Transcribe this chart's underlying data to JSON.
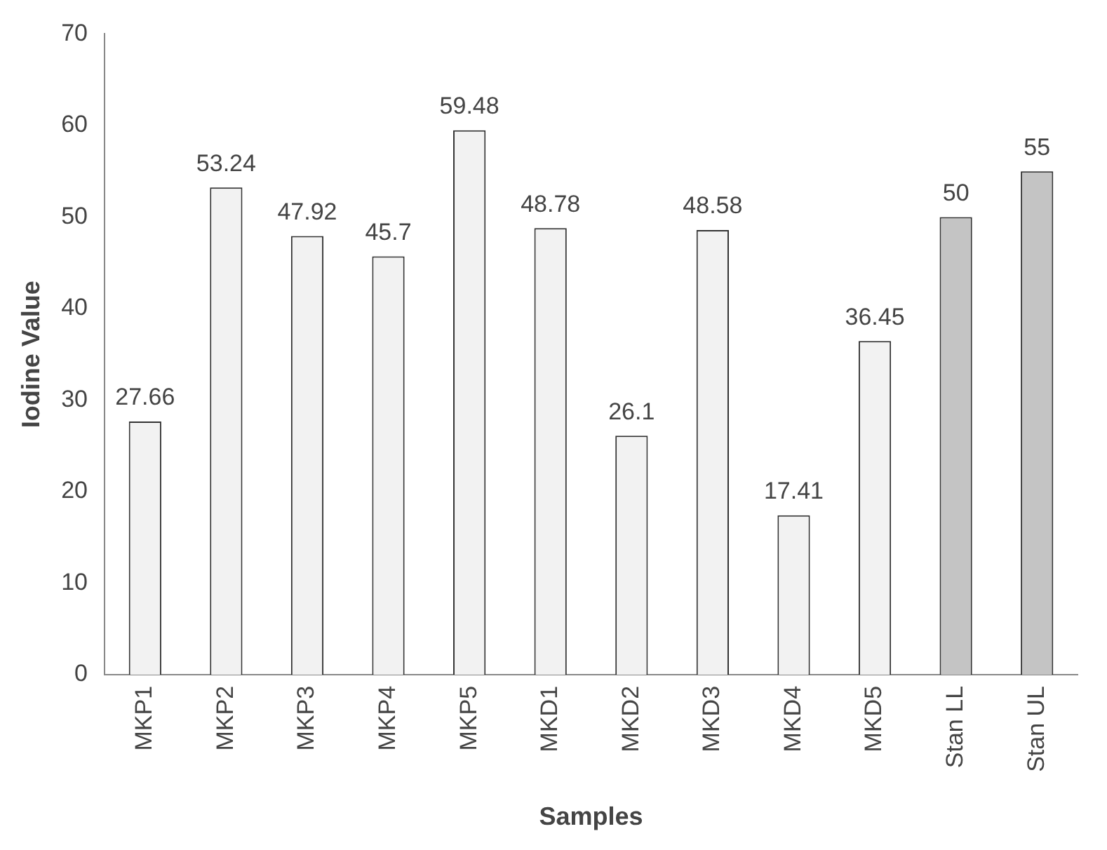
{
  "chart_data": {
    "type": "bar",
    "xlabel": "Samples",
    "ylabel": "Iodine Value",
    "categories": [
      "MKP1",
      "MKP2",
      "MKP3",
      "MKP4",
      "MKP5",
      "MKD1",
      "MKD2",
      "MKD3",
      "MKD4",
      "MKD5",
      "Stan LL",
      "Stan UL"
    ],
    "values": [
      27.66,
      53.24,
      47.92,
      45.7,
      59.48,
      48.78,
      26.1,
      48.58,
      17.41,
      36.45,
      50,
      55
    ],
    "colors": [
      "#f2f2f2",
      "#f2f2f2",
      "#f2f2f2",
      "#f2f2f2",
      "#f2f2f2",
      "#f2f2f2",
      "#f2f2f2",
      "#f2f2f2",
      "#f2f2f2",
      "#f2f2f2",
      "#c4c4c4",
      "#c4c4c4"
    ],
    "ylim": [
      0,
      70
    ],
    "yticks": [
      0,
      10,
      20,
      30,
      40,
      50,
      60,
      70
    ],
    "grid": false,
    "legend": false,
    "data_labels": true
  }
}
